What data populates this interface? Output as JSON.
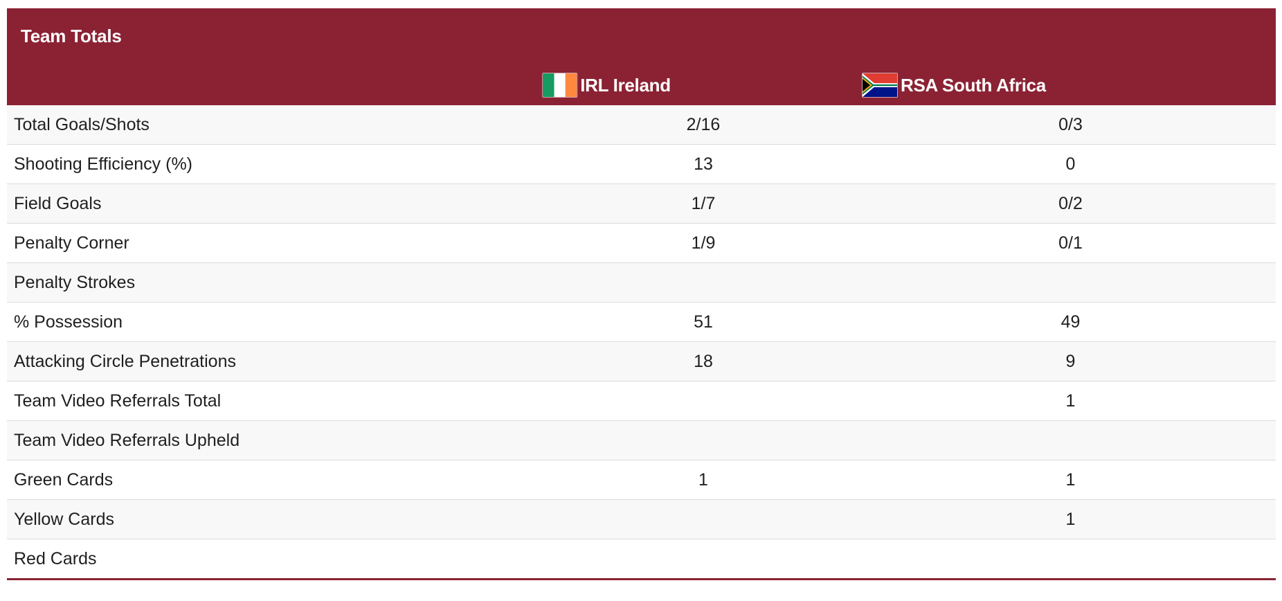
{
  "panel": {
    "title": "Team Totals"
  },
  "teams": {
    "home": {
      "code": "IRL",
      "name": "Ireland",
      "label": "IRL Ireland",
      "flag_icon": "ireland-flag-icon"
    },
    "away": {
      "code": "RSA",
      "name": "South Africa",
      "label": "RSA South Africa",
      "flag_icon": "south-africa-flag-icon"
    }
  },
  "colors": {
    "header_bg": "#8b2234",
    "header_text": "#ffffff",
    "row_alt_bg": "#f8f8f8",
    "divider": "#dcdcdc"
  },
  "stats": [
    {
      "label": "Total Goals/Shots",
      "home": "2/16",
      "away": "0/3"
    },
    {
      "label": "Shooting Efficiency (%)",
      "home": "13",
      "away": "0"
    },
    {
      "label": "Field Goals",
      "home": "1/7",
      "away": "0/2"
    },
    {
      "label": "Penalty Corner",
      "home": "1/9",
      "away": "0/1"
    },
    {
      "label": "Penalty Strokes",
      "home": "",
      "away": ""
    },
    {
      "label": "% Possession",
      "home": "51",
      "away": "49"
    },
    {
      "label": "Attacking Circle Penetrations",
      "home": "18",
      "away": "9"
    },
    {
      "label": "Team Video Referrals Total",
      "home": "",
      "away": "1"
    },
    {
      "label": "Team Video Referrals Upheld",
      "home": "",
      "away": ""
    },
    {
      "label": "Green Cards",
      "home": "1",
      "away": "1"
    },
    {
      "label": "Yellow Cards",
      "home": "",
      "away": "1"
    },
    {
      "label": "Red Cards",
      "home": "",
      "away": ""
    }
  ]
}
